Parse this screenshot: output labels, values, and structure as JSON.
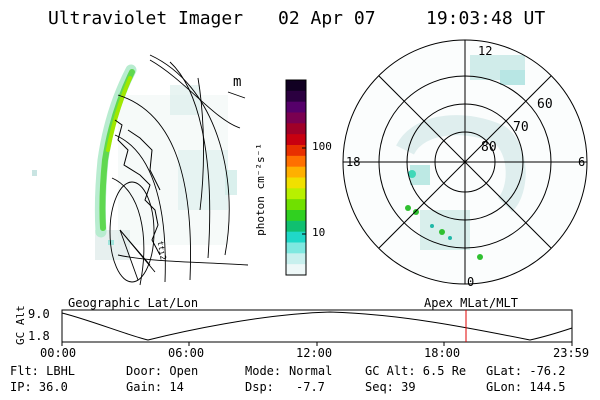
{
  "header": {
    "instrument": "Ultraviolet Imager",
    "date": "02 Apr 07",
    "time": "19:03:48 UT"
  },
  "geo_panel": {
    "label": "Geographic Lat/Lon",
    "corner_glyph": "m",
    "small_label": "tti2"
  },
  "colorbar": {
    "unit_label": "photon cm⁻²s⁻¹",
    "ticks": [
      "100",
      "10"
    ],
    "colors": [
      "#110022",
      "#2b0040",
      "#55006a",
      "#7a0050",
      "#a00028",
      "#c80010",
      "#e83000",
      "#ff7000",
      "#ffb000",
      "#f0e000",
      "#b8f000",
      "#70e000",
      "#30d020",
      "#10c070",
      "#20d8c8",
      "#7fe8e0",
      "#c8f0ee",
      "#eef8f8"
    ]
  },
  "polar_panel": {
    "label": "Apex  MLat/MLT",
    "hour_labels": {
      "top": "12",
      "left": "18",
      "right": "6",
      "bottom": "0"
    },
    "lat_labels": [
      "60",
      "70",
      "80"
    ]
  },
  "altitude_plot": {
    "ylabel": "GC Alt",
    "ymax_label": "9.0",
    "ymin_label": "1.8",
    "time_ticks": [
      "00:00",
      "06:00",
      "12:00",
      "18:00",
      "23:59"
    ],
    "current_time_marker_color": "#e00000"
  },
  "stats": {
    "col1": [
      "Flt: LBHL",
      "IP: 36.0"
    ],
    "col2": [
      "Door: Open",
      "Gain: 14"
    ],
    "col3a": [
      "Mode:",
      "Dsp:"
    ],
    "col3b": [
      "Normal",
      "-7.7"
    ],
    "col4": [
      "GC Alt: 6.5 Re",
      "Seq: 39"
    ],
    "col5": [
      "GLat: -76.2",
      "GLon: 144.5"
    ]
  }
}
